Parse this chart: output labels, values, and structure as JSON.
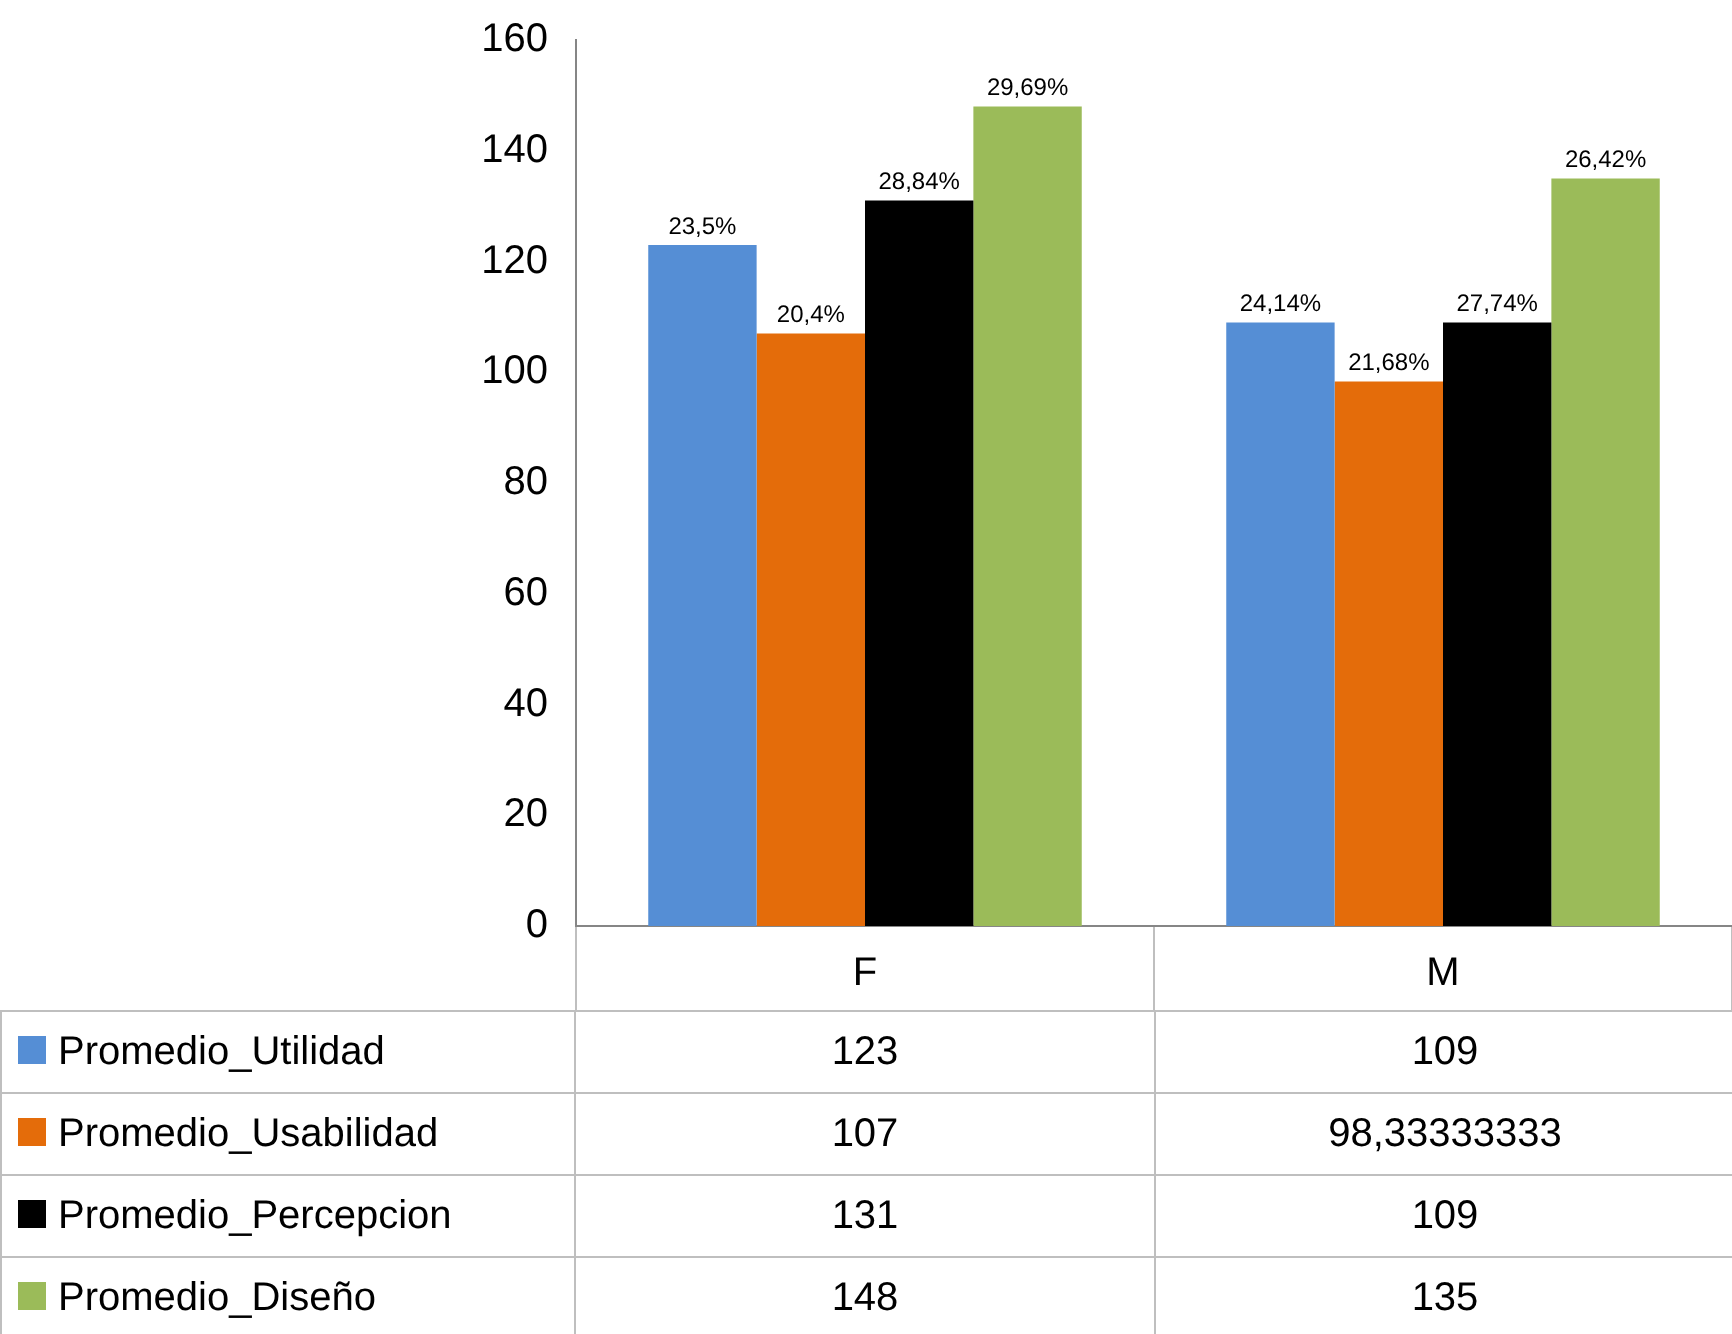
{
  "chart_data": {
    "type": "bar",
    "categories": [
      "F",
      "M"
    ],
    "series": [
      {
        "name": "Promedio_Utilidad",
        "color": "#558ed5",
        "values": [
          123,
          109
        ],
        "value_labels": [
          "123",
          "109"
        ]
      },
      {
        "name": "Promedio_Usabilidad",
        "color": "#e46c0a",
        "values": [
          107,
          98.33333333
        ],
        "value_labels": [
          "107",
          "98,33333333"
        ]
      },
      {
        "name": "Promedio_Percepcion",
        "color": "#000000",
        "values": [
          131,
          109
        ],
        "value_labels": [
          "131",
          "109"
        ]
      },
      {
        "name": "Promedio_Diseño",
        "color": "#9bbb59",
        "values": [
          148,
          135
        ],
        "value_labels": [
          "148",
          "135"
        ]
      }
    ],
    "annotations": [
      "23,5%",
      "20,4%",
      "28,84%",
      "29,69%",
      "24,14%",
      "21,68%",
      "27,74%",
      "26,42%"
    ],
    "ylim": [
      0,
      160
    ],
    "yticks": [
      0,
      20,
      40,
      60,
      80,
      100,
      120,
      140,
      160
    ],
    "grid": false,
    "legend": "bottom"
  }
}
